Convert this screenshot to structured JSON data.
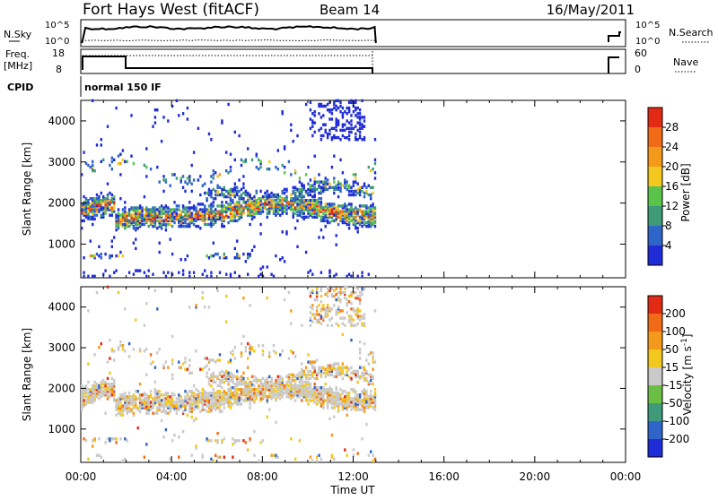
{
  "header": {
    "title": "Fort Hays West (fitACF)",
    "beam": "Beam 14",
    "date": "16/May/2011"
  },
  "noise_panel": {
    "left_label": "N.Sky",
    "right_label": "N.Search",
    "left_ticks": [
      "10^5",
      "10^0"
    ],
    "right_ticks": [
      "10^5",
      "10^0"
    ]
  },
  "freq_panel": {
    "left_label": "Freq.",
    "left_unit": "[MHz]",
    "right_label": "Nave",
    "left_ticks": [
      "18",
      "8"
    ],
    "right_ticks": [
      "60",
      "0"
    ]
  },
  "cpid": {
    "label": "CPID",
    "value": "normal 150 IF"
  },
  "x_axis": {
    "label": "Time UT",
    "ticks": [
      "00:00",
      "04:00",
      "08:00",
      "12:00",
      "16:00",
      "20:00",
      "00:00"
    ]
  },
  "colors": {
    "power": [
      "#1f2bd6",
      "#2f64c8",
      "#3f9a7a",
      "#59c34a",
      "#f2c81e",
      "#f39a1c",
      "#f06a18",
      "#e22a14"
    ],
    "velocity": [
      "#e22a14",
      "#f06a18",
      "#f39a1c",
      "#f2c81e",
      "#c9c9c9",
      "#6bbf45",
      "#3f9a7a",
      "#2f64c8",
      "#1f2bd6"
    ]
  },
  "chart_data": [
    {
      "type": "heatmap",
      "quantity": "power",
      "ylabel": "Slant Range [km]",
      "yticks": [
        "1000",
        "2000",
        "3000",
        "4000"
      ],
      "ylim": [
        180,
        4500
      ],
      "xlim": [
        0,
        24
      ],
      "colorbar_label": "Power [dB]",
      "colorbar_ticks": [
        "4",
        "8",
        "12",
        "16",
        "20",
        "24",
        "28"
      ],
      "data_extent_hours": [
        0,
        13
      ]
    },
    {
      "type": "heatmap",
      "quantity": "velocity",
      "ylabel": "Slant Range [km]",
      "yticks": [
        "1000",
        "2000",
        "3000",
        "4000"
      ],
      "ylim": [
        180,
        4500
      ],
      "xlim": [
        0,
        24
      ],
      "colorbar_label": "Velocity [m s^-1]",
      "colorbar_ticks": [
        "200",
        "100",
        "50",
        "15",
        "-15",
        "-50",
        "-100",
        "-200"
      ],
      "data_extent_hours": [
        0,
        13
      ]
    }
  ]
}
